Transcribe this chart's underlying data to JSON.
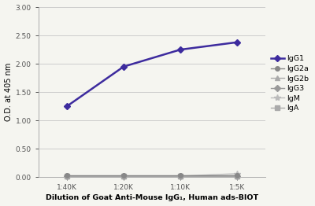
{
  "x_labels": [
    "1:40K",
    "1:20K",
    "1:10K",
    "1:5K"
  ],
  "x_values": [
    1,
    2,
    3,
    4
  ],
  "series": {
    "IgG1": {
      "y": [
        1.25,
        1.95,
        2.25,
        2.38
      ],
      "color": "#3d2b9e",
      "marker": "D",
      "markersize": 4,
      "linewidth": 1.8,
      "zorder": 5
    },
    "IgG2a": {
      "y": [
        0.03,
        0.03,
        0.03,
        0.03
      ],
      "color": "#888888",
      "marker": "o",
      "markersize": 4,
      "linewidth": 1.0,
      "zorder": 4
    },
    "IgG2b": {
      "y": [
        0.02,
        0.02,
        0.02,
        0.02
      ],
      "color": "#aaaaaa",
      "marker": "^",
      "markersize": 4,
      "linewidth": 1.0,
      "zorder": 3
    },
    "IgG3": {
      "y": [
        0.02,
        0.02,
        0.02,
        0.02
      ],
      "color": "#999999",
      "marker": "D",
      "markersize": 4,
      "linewidth": 1.0,
      "zorder": 2
    },
    "IgM": {
      "y": [
        0.02,
        0.02,
        0.02,
        0.06
      ],
      "color": "#bbbbbb",
      "marker": "*",
      "markersize": 6,
      "linewidth": 1.0,
      "zorder": 1
    },
    "IgA": {
      "y": [
        0.02,
        0.02,
        0.02,
        0.02
      ],
      "color": "#aaaaaa",
      "marker": "s",
      "markersize": 4,
      "linewidth": 1.0,
      "zorder": 0
    }
  },
  "ylabel": "O.D. at 405 nm",
  "xlabel": "Dilution of Goat Anti-Mouse IgG₁, Human ads-BIOT",
  "ylim": [
    0.0,
    3.0
  ],
  "yticks": [
    0.0,
    0.5,
    1.0,
    1.5,
    2.0,
    2.5,
    3.0
  ],
  "background_color": "#f5f5f0",
  "plot_bg_color": "#f5f5f0",
  "grid_color": "#cccccc",
  "spine_color": "#aaaaaa"
}
